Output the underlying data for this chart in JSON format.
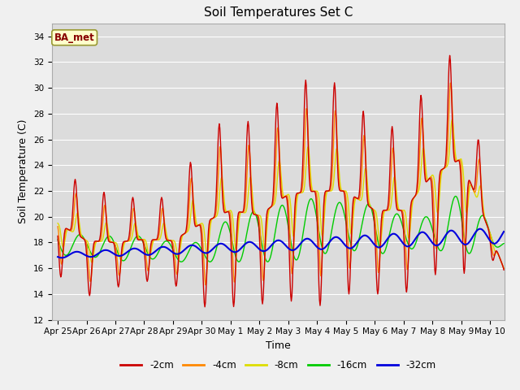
{
  "title": "Soil Temperatures Set C",
  "xlabel": "Time",
  "ylabel": "Soil Temperature (C)",
  "ylim": [
    12,
    35
  ],
  "yticks": [
    12,
    14,
    16,
    18,
    20,
    22,
    24,
    26,
    28,
    30,
    32,
    34
  ],
  "annotation_label": "BA_met",
  "line_colors": {
    "-2cm": "#cc0000",
    "-4cm": "#ff8800",
    "-8cm": "#dddd00",
    "-16cm": "#00cc00",
    "-32cm": "#0000dd"
  },
  "legend_labels": [
    "-2cm",
    "-4cm",
    "-8cm",
    "-16cm",
    "-32cm"
  ],
  "plot_bg_color": "#dcdcdc",
  "fig_bg_color": "#f0f0f0",
  "tick_labels": [
    "Apr 25",
    "Apr 26",
    "Apr 27",
    "Apr 28",
    "Apr 29",
    "Apr 30",
    "May 1",
    "May 2",
    "May 3",
    "May 4",
    "May 5",
    "May 6",
    "May 7",
    "May 8",
    "May 9",
    "May 10"
  ],
  "tick_positions": [
    0,
    1,
    2,
    3,
    4,
    5,
    6,
    7,
    8,
    9,
    10,
    11,
    12,
    13,
    14,
    15
  ]
}
